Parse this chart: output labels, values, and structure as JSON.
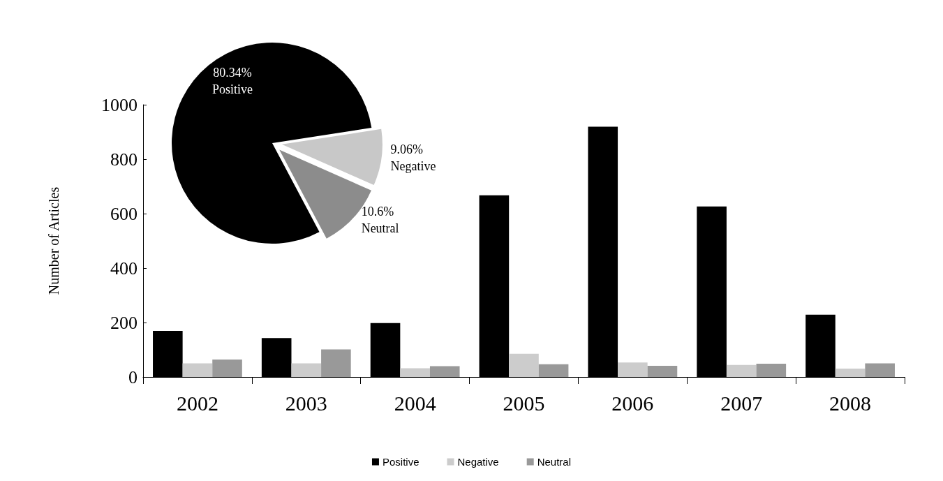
{
  "chart_data": [
    {
      "type": "bar",
      "ylabel": "Number of Articles",
      "categories": [
        "2002",
        "2003",
        "2004",
        "2005",
        "2006",
        "2007",
        "2008"
      ],
      "series": [
        {
          "name": "Positive",
          "color": "#000000",
          "values": [
            169,
            143,
            198,
            667,
            919,
            626,
            229
          ]
        },
        {
          "name": "Negative",
          "color": "#cccccc",
          "values": [
            50,
            50,
            32,
            85,
            53,
            44,
            31
          ]
        },
        {
          "name": "Neutral",
          "color": "#999999",
          "values": [
            64,
            101,
            40,
            47,
            41,
            49,
            50
          ]
        }
      ],
      "ylim": [
        0,
        1000
      ],
      "yticks": [
        0,
        200,
        400,
        600,
        800,
        1000
      ],
      "legend": "bottom"
    },
    {
      "type": "pie",
      "categories": [
        "Positive",
        "Negative",
        "Neutral"
      ],
      "values": [
        80.34,
        9.06,
        10.6
      ],
      "value_labels": [
        "80.34%",
        "9.06%",
        "10.6%"
      ],
      "colors": [
        "#000000",
        "#c8c8c8",
        "#8c8c8c"
      ],
      "data_labels": true
    }
  ]
}
